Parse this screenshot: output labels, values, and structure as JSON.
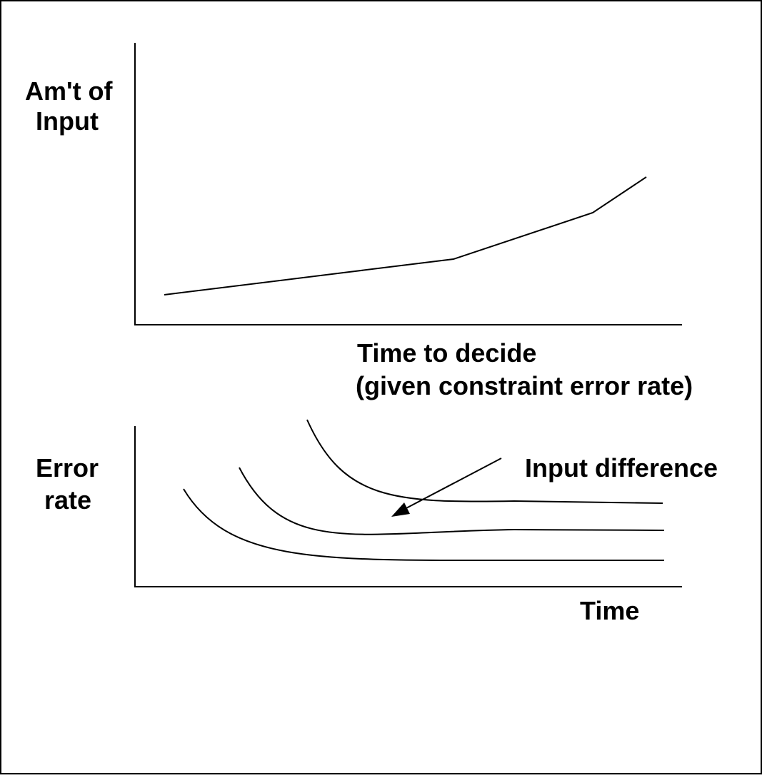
{
  "top_chart": {
    "y_label": [
      "Am't of",
      "Input"
    ],
    "x_label": [
      "Time to decide",
      "(given constraint error rate)"
    ]
  },
  "bottom_chart": {
    "y_label": [
      "Error",
      "rate"
    ],
    "x_label": "Time",
    "annotation": "Input difference"
  }
}
